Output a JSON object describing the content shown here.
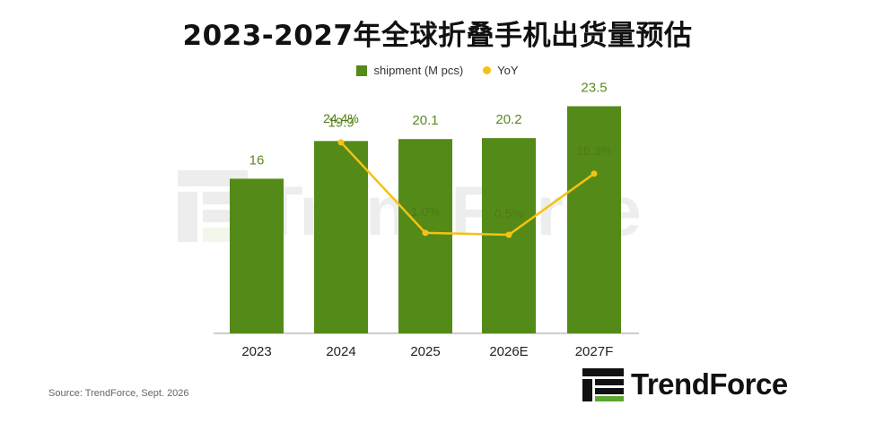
{
  "title": "2023-2027年全球折叠手机出货量预估",
  "legend": {
    "shipment_label": "shipment (M pcs)",
    "yoy_label": "YoY"
  },
  "source": "Source: TrendForce, Sept. 2026",
  "logo_text": "TrendForce",
  "watermark_text": "TrendForce",
  "colors": {
    "bar": "#548a18",
    "bar_label": "#5b8a1e",
    "line": "#f5c211",
    "line_label": "#4f7a16",
    "axis": "#9e9e9e"
  },
  "chart_data": {
    "type": "bar",
    "title": "2023-2027年全球折叠手机出货量预估",
    "categories": [
      "2023",
      "2024",
      "2025",
      "2026E",
      "2027F"
    ],
    "series": [
      {
        "name": "shipment (M pcs)",
        "type": "bar",
        "values": [
          16,
          19.9,
          20.1,
          20.2,
          23.5
        ],
        "labels": [
          "16",
          "19.9",
          "20.1",
          "20.2",
          "23.5"
        ]
      },
      {
        "name": "YoY",
        "type": "line",
        "values": [
          null,
          24.4,
          1.0,
          0.5,
          16.3
        ],
        "labels": [
          "",
          "24.4%",
          "1.0%",
          "0.5%",
          "16.3%"
        ]
      }
    ],
    "ylim": [
      0,
      28
    ],
    "y2lim": [
      -25,
      45
    ],
    "grid": false,
    "legend_position": "top-center"
  }
}
